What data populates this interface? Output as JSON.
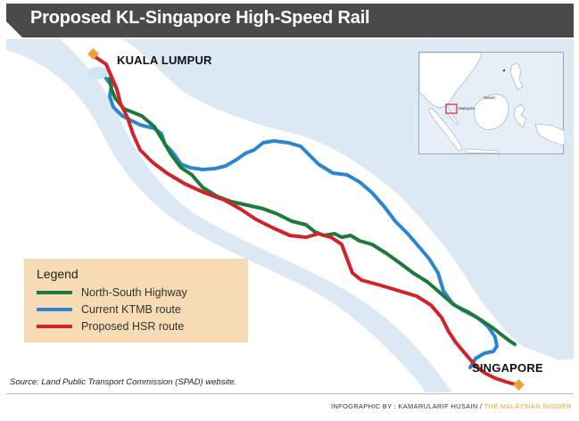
{
  "title": "Proposed KL-Singapore High-Speed Rail",
  "cities": {
    "kuala_lumpur": "KUALA LUMPUR",
    "singapore": "SINGAPORE"
  },
  "legend": {
    "title": "Legend",
    "items": [
      {
        "label": "North-South Highway",
        "color": "#1e7a3a"
      },
      {
        "label": "Current KTMB route",
        "color": "#2a86cf"
      },
      {
        "label": "Proposed HSR route",
        "color": "#d2232a"
      }
    ]
  },
  "source": "Source: Land Public Transport Commission (SPAD) website.",
  "inset": {
    "labels": {
      "malaysia": "Malaysia",
      "sabah": "Sabah"
    }
  },
  "credit": {
    "by": "INFOGRAPHIC BY : KAMARULARIF HUSAIN",
    "separator": " / ",
    "publisher": "THE MALAYSIAN INSIDER"
  },
  "colors": {
    "highway": "#1e7a3a",
    "ktmb": "#2a86cf",
    "hsr": "#d2232a",
    "marker": "#f0a030",
    "land": "#ffffff",
    "sea": "#dce9f5"
  },
  "icons": {
    "city_marker": "diamond-marker-icon"
  }
}
